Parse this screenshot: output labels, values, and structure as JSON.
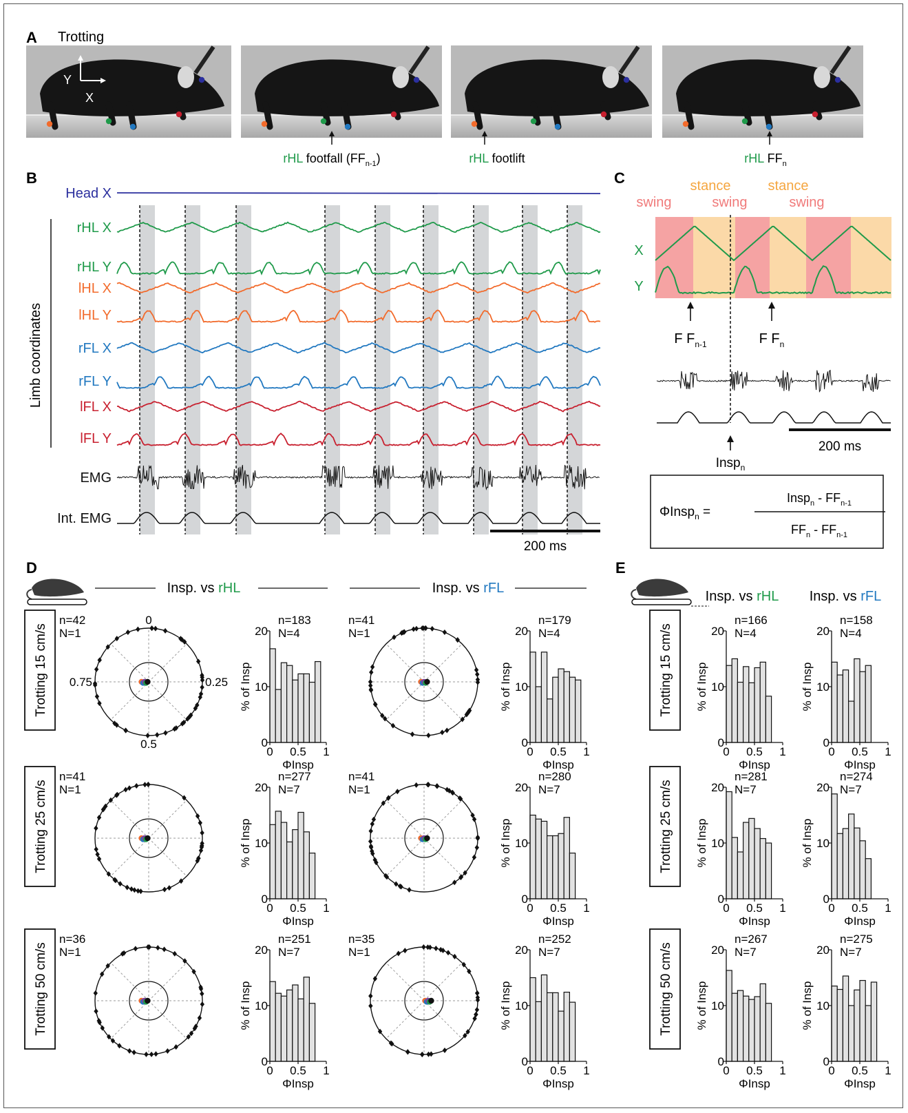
{
  "panel_letters": [
    "A",
    "B",
    "C",
    "D",
    "E"
  ],
  "panelA": {
    "title": "Trotting",
    "axis_y": "Y",
    "axis_x": "X",
    "captions": [
      {
        "limb": "rHL",
        "text": " footfall (FF",
        "sub": "n-1",
        "tail": ")"
      },
      {
        "limb": "rHL",
        "text": " footlift",
        "sub": "",
        "tail": ""
      },
      {
        "limb": "rHL",
        "text": " FF",
        "sub": "n",
        "tail": ""
      }
    ]
  },
  "panelB": {
    "traces": [
      {
        "label": "Head X",
        "color": "#2b2f9e"
      },
      {
        "label": "rHL X",
        "color": "#1f9a4a"
      },
      {
        "label": "rHL Y",
        "color": "#1f9a4a"
      },
      {
        "label": "lHL X",
        "color": "#f26b2c"
      },
      {
        "label": "lHL Y",
        "color": "#f26b2c"
      },
      {
        "label": "rFL X",
        "color": "#2178c0"
      },
      {
        "label": "rFL Y",
        "color": "#2178c0"
      },
      {
        "label": "lFL X",
        "color": "#c8202f"
      },
      {
        "label": "lFL Y",
        "color": "#c8202f"
      },
      {
        "label": "EMG",
        "color": "#111111"
      },
      {
        "label": "Int. EMG",
        "color": "#111111"
      }
    ],
    "group_label": "Limb coordinates",
    "scalebar": "200 ms"
  },
  "panelC": {
    "phase_labels": [
      {
        "text": "swing",
        "color": "#f07a7a"
      },
      {
        "text": "stance",
        "color": "#f5a640"
      },
      {
        "text": "swing",
        "color": "#f07a7a"
      },
      {
        "text": "stance",
        "color": "#f5a640"
      },
      {
        "text": "swing",
        "color": "#f07a7a"
      }
    ],
    "trace_labels": [
      "X",
      "Y"
    ],
    "ff_prev": {
      "base": "FF",
      "sub": "n-1"
    },
    "ff_curr": {
      "base": "FF",
      "sub": "n"
    },
    "insp": {
      "base": "Insp",
      "sub": "n"
    },
    "scalebar": "200 ms",
    "formula": {
      "lhs_base": "ΦInsp",
      "lhs_sub": "n",
      "eq": " =",
      "num_a": "Insp",
      "num_a_sub": "n",
      "num_b": " - FF",
      "num_b_sub": "n-1",
      "den_a": "FF",
      "den_a_sub": "n",
      "den_b": " - FF",
      "den_b_sub": "n-1"
    }
  },
  "panelD": {
    "header_left": "Insp. vs ",
    "header_rhl": "rHL",
    "header_rfl": "rFL",
    "polar_labels": {
      "top": "0",
      "right": "0.25",
      "bottom": "0.5",
      "left": "0.75"
    },
    "rows": [
      {
        "condition": "Trotting 15 cm/s",
        "polar_rhl": {
          "n": "n=42",
          "N": "N=1"
        },
        "polar_rfl": {
          "n": "n=41",
          "N": "N=1"
        },
        "hist_rhl": {
          "n": "n=183",
          "N": "N=4"
        },
        "hist_rfl": {
          "n": "n=179",
          "N": "N=4"
        }
      },
      {
        "condition": "Trotting 25 cm/s",
        "polar_rhl": {
          "n": "n=41",
          "N": "N=1"
        },
        "polar_rfl": {
          "n": "n=41",
          "N": "N=1"
        },
        "hist_rhl": {
          "n": "n=277",
          "N": "N=7"
        },
        "hist_rfl": {
          "n": "n=280",
          "N": "N=7"
        }
      },
      {
        "condition": "Trotting 50 cm/s",
        "polar_rhl": {
          "n": "n=36",
          "N": "N=1"
        },
        "polar_rfl": {
          "n": "n=35",
          "N": "N=1"
        },
        "hist_rhl": {
          "n": "n=251",
          "N": "N=7"
        },
        "hist_rfl": {
          "n": "n=252",
          "N": "N=7"
        }
      }
    ]
  },
  "panelE": {
    "header_left": "Insp. vs ",
    "header_rhl": "rHL",
    "header_rfl": "rFL",
    "rows": [
      {
        "condition": "Trotting 15 cm/s",
        "hist_rhl": {
          "n": "n=166",
          "N": "N=4"
        },
        "hist_rfl": {
          "n": "n=158",
          "N": "N=4"
        }
      },
      {
        "condition": "Trotting 25 cm/s",
        "hist_rhl": {
          "n": "n=281",
          "N": "N=7"
        },
        "hist_rfl": {
          "n": "n=274",
          "N": "N=7"
        }
      },
      {
        "condition": "Trotting 50 cm/s",
        "hist_rhl": {
          "n": "n=267",
          "N": "N=7"
        },
        "hist_rfl": {
          "n": "n=275",
          "N": "N=7"
        }
      }
    ]
  },
  "hist_axes": {
    "ylabel": "% of Insp",
    "xlabel": "ΦInsp",
    "yticks": [
      "0",
      "10",
      "20"
    ],
    "xticks": [
      "0",
      "0.5",
      "1"
    ]
  },
  "colors": {
    "rHL": "#1f9a4a",
    "lHL": "#f26b2c",
    "rFL": "#2178c0",
    "lFL": "#c8202f",
    "head": "#2b2f9e",
    "shade": "#d4d6d8"
  },
  "chart_data": [
    {
      "type": "bar",
      "panel": "D",
      "row": "Trotting 15 cm/s",
      "ref": "rHL",
      "x": [
        0.05,
        0.15,
        0.25,
        0.35,
        0.45,
        0.55,
        0.65,
        0.75,
        0.85,
        0.95
      ],
      "values": [
        16.8,
        9.5,
        14.3,
        13.8,
        11.2,
        12.3,
        12.3,
        10.8,
        14.5,
        0
      ],
      "ylim": [
        0,
        20
      ],
      "xlim": [
        0,
        1
      ]
    },
    {
      "type": "bar",
      "panel": "D",
      "row": "Trotting 15 cm/s",
      "ref": "rFL",
      "x": [
        0.05,
        0.15,
        0.25,
        0.35,
        0.45,
        0.55,
        0.65,
        0.75,
        0.85,
        0.95
      ],
      "values": [
        16.2,
        10.0,
        16.2,
        7.8,
        11.7,
        13.2,
        12.7,
        11.7,
        11.2,
        0
      ],
      "ylim": [
        0,
        20
      ],
      "xlim": [
        0,
        1
      ]
    },
    {
      "type": "bar",
      "panel": "D",
      "row": "Trotting 25 cm/s",
      "ref": "rHL",
      "x": [
        0.05,
        0.15,
        0.25,
        0.35,
        0.45,
        0.55,
        0.65,
        0.75,
        0.85,
        0.95
      ],
      "values": [
        13.3,
        15.7,
        13.7,
        10.2,
        12.4,
        15.5,
        12.0,
        8.2,
        0,
        0
      ],
      "ylim": [
        0,
        20
      ],
      "xlim": [
        0,
        1
      ]
    },
    {
      "type": "bar",
      "panel": "D",
      "row": "Trotting 25 cm/s",
      "ref": "rFL",
      "x": [
        0.05,
        0.15,
        0.25,
        0.35,
        0.45,
        0.55,
        0.65,
        0.75,
        0.85,
        0.95
      ],
      "values": [
        15.0,
        14.3,
        13.9,
        11.3,
        11.3,
        11.7,
        14.6,
        8.2,
        0,
        0
      ],
      "ylim": [
        0,
        20
      ],
      "xlim": [
        0,
        1
      ]
    },
    {
      "type": "bar",
      "panel": "D",
      "row": "Trotting 50 cm/s",
      "ref": "rHL",
      "x": [
        0.05,
        0.15,
        0.25,
        0.35,
        0.45,
        0.55,
        0.65,
        0.75,
        0.85,
        0.95
      ],
      "values": [
        14.3,
        12.2,
        11.7,
        12.8,
        13.7,
        11.2,
        15.1,
        10.4,
        0,
        0
      ],
      "ylim": [
        0,
        20
      ],
      "xlim": [
        0,
        1
      ]
    },
    {
      "type": "bar",
      "panel": "D",
      "row": "Trotting 50 cm/s",
      "ref": "rFL",
      "x": [
        0.05,
        0.15,
        0.25,
        0.35,
        0.45,
        0.55,
        0.65,
        0.75,
        0.85,
        0.95
      ],
      "values": [
        15.0,
        10.7,
        15.5,
        12.3,
        12.3,
        9.0,
        12.4,
        10.6,
        0,
        0
      ],
      "ylim": [
        0,
        20
      ],
      "xlim": [
        0,
        1
      ]
    },
    {
      "type": "bar",
      "panel": "E",
      "row": "Trotting 15 cm/s",
      "ref": "rHL",
      "x": [
        0.05,
        0.15,
        0.25,
        0.35,
        0.45,
        0.55,
        0.65,
        0.75,
        0.85,
        0.95
      ],
      "values": [
        13.8,
        15.0,
        10.8,
        13.6,
        10.7,
        13.4,
        14.4,
        8.3,
        0,
        0
      ],
      "ylim": [
        0,
        20
      ],
      "xlim": [
        0,
        1
      ]
    },
    {
      "type": "bar",
      "panel": "E",
      "row": "Trotting 15 cm/s",
      "ref": "rFL",
      "x": [
        0.05,
        0.15,
        0.25,
        0.35,
        0.45,
        0.55,
        0.65,
        0.75,
        0.85,
        0.95
      ],
      "values": [
        14.4,
        12.1,
        13.0,
        7.4,
        15.0,
        12.7,
        13.8,
        0,
        0,
        0
      ],
      "ylim": [
        0,
        20
      ],
      "xlim": [
        0,
        1
      ]
    },
    {
      "type": "bar",
      "panel": "E",
      "row": "Trotting 25 cm/s",
      "ref": "rHL",
      "x": [
        0.05,
        0.15,
        0.25,
        0.35,
        0.45,
        0.55,
        0.65,
        0.75,
        0.85,
        0.95
      ],
      "values": [
        19.2,
        11.0,
        8.4,
        13.7,
        14.4,
        12.6,
        10.8,
        10.0,
        0,
        0
      ],
      "ylim": [
        0,
        20
      ],
      "xlim": [
        0,
        1
      ]
    },
    {
      "type": "bar",
      "panel": "E",
      "row": "Trotting 25 cm/s",
      "ref": "rFL",
      "x": [
        0.05,
        0.15,
        0.25,
        0.35,
        0.45,
        0.55,
        0.65,
        0.75,
        0.85,
        0.95
      ],
      "values": [
        18.8,
        11.7,
        12.6,
        15.2,
        12.7,
        10.4,
        7.2,
        0,
        0,
        0
      ],
      "ylim": [
        0,
        20
      ],
      "xlim": [
        0,
        1
      ]
    },
    {
      "type": "bar",
      "panel": "E",
      "row": "Trotting 50 cm/s",
      "ref": "rHL",
      "x": [
        0.05,
        0.15,
        0.25,
        0.35,
        0.45,
        0.55,
        0.65,
        0.75,
        0.85,
        0.95
      ],
      "values": [
        16.3,
        12.2,
        12.7,
        11.7,
        11.1,
        11.6,
        13.9,
        10.4,
        0,
        0
      ],
      "ylim": [
        0,
        20
      ],
      "xlim": [
        0,
        1
      ]
    },
    {
      "type": "bar",
      "panel": "E",
      "row": "Trotting 50 cm/s",
      "ref": "rFL",
      "x": [
        0.05,
        0.15,
        0.25,
        0.35,
        0.45,
        0.55,
        0.65,
        0.75,
        0.85,
        0.95
      ],
      "values": [
        13.5,
        12.9,
        15.3,
        10.0,
        12.8,
        14.5,
        10.0,
        14.2,
        0,
        0
      ],
      "ylim": [
        0,
        20
      ],
      "xlim": [
        0,
        1
      ]
    }
  ]
}
